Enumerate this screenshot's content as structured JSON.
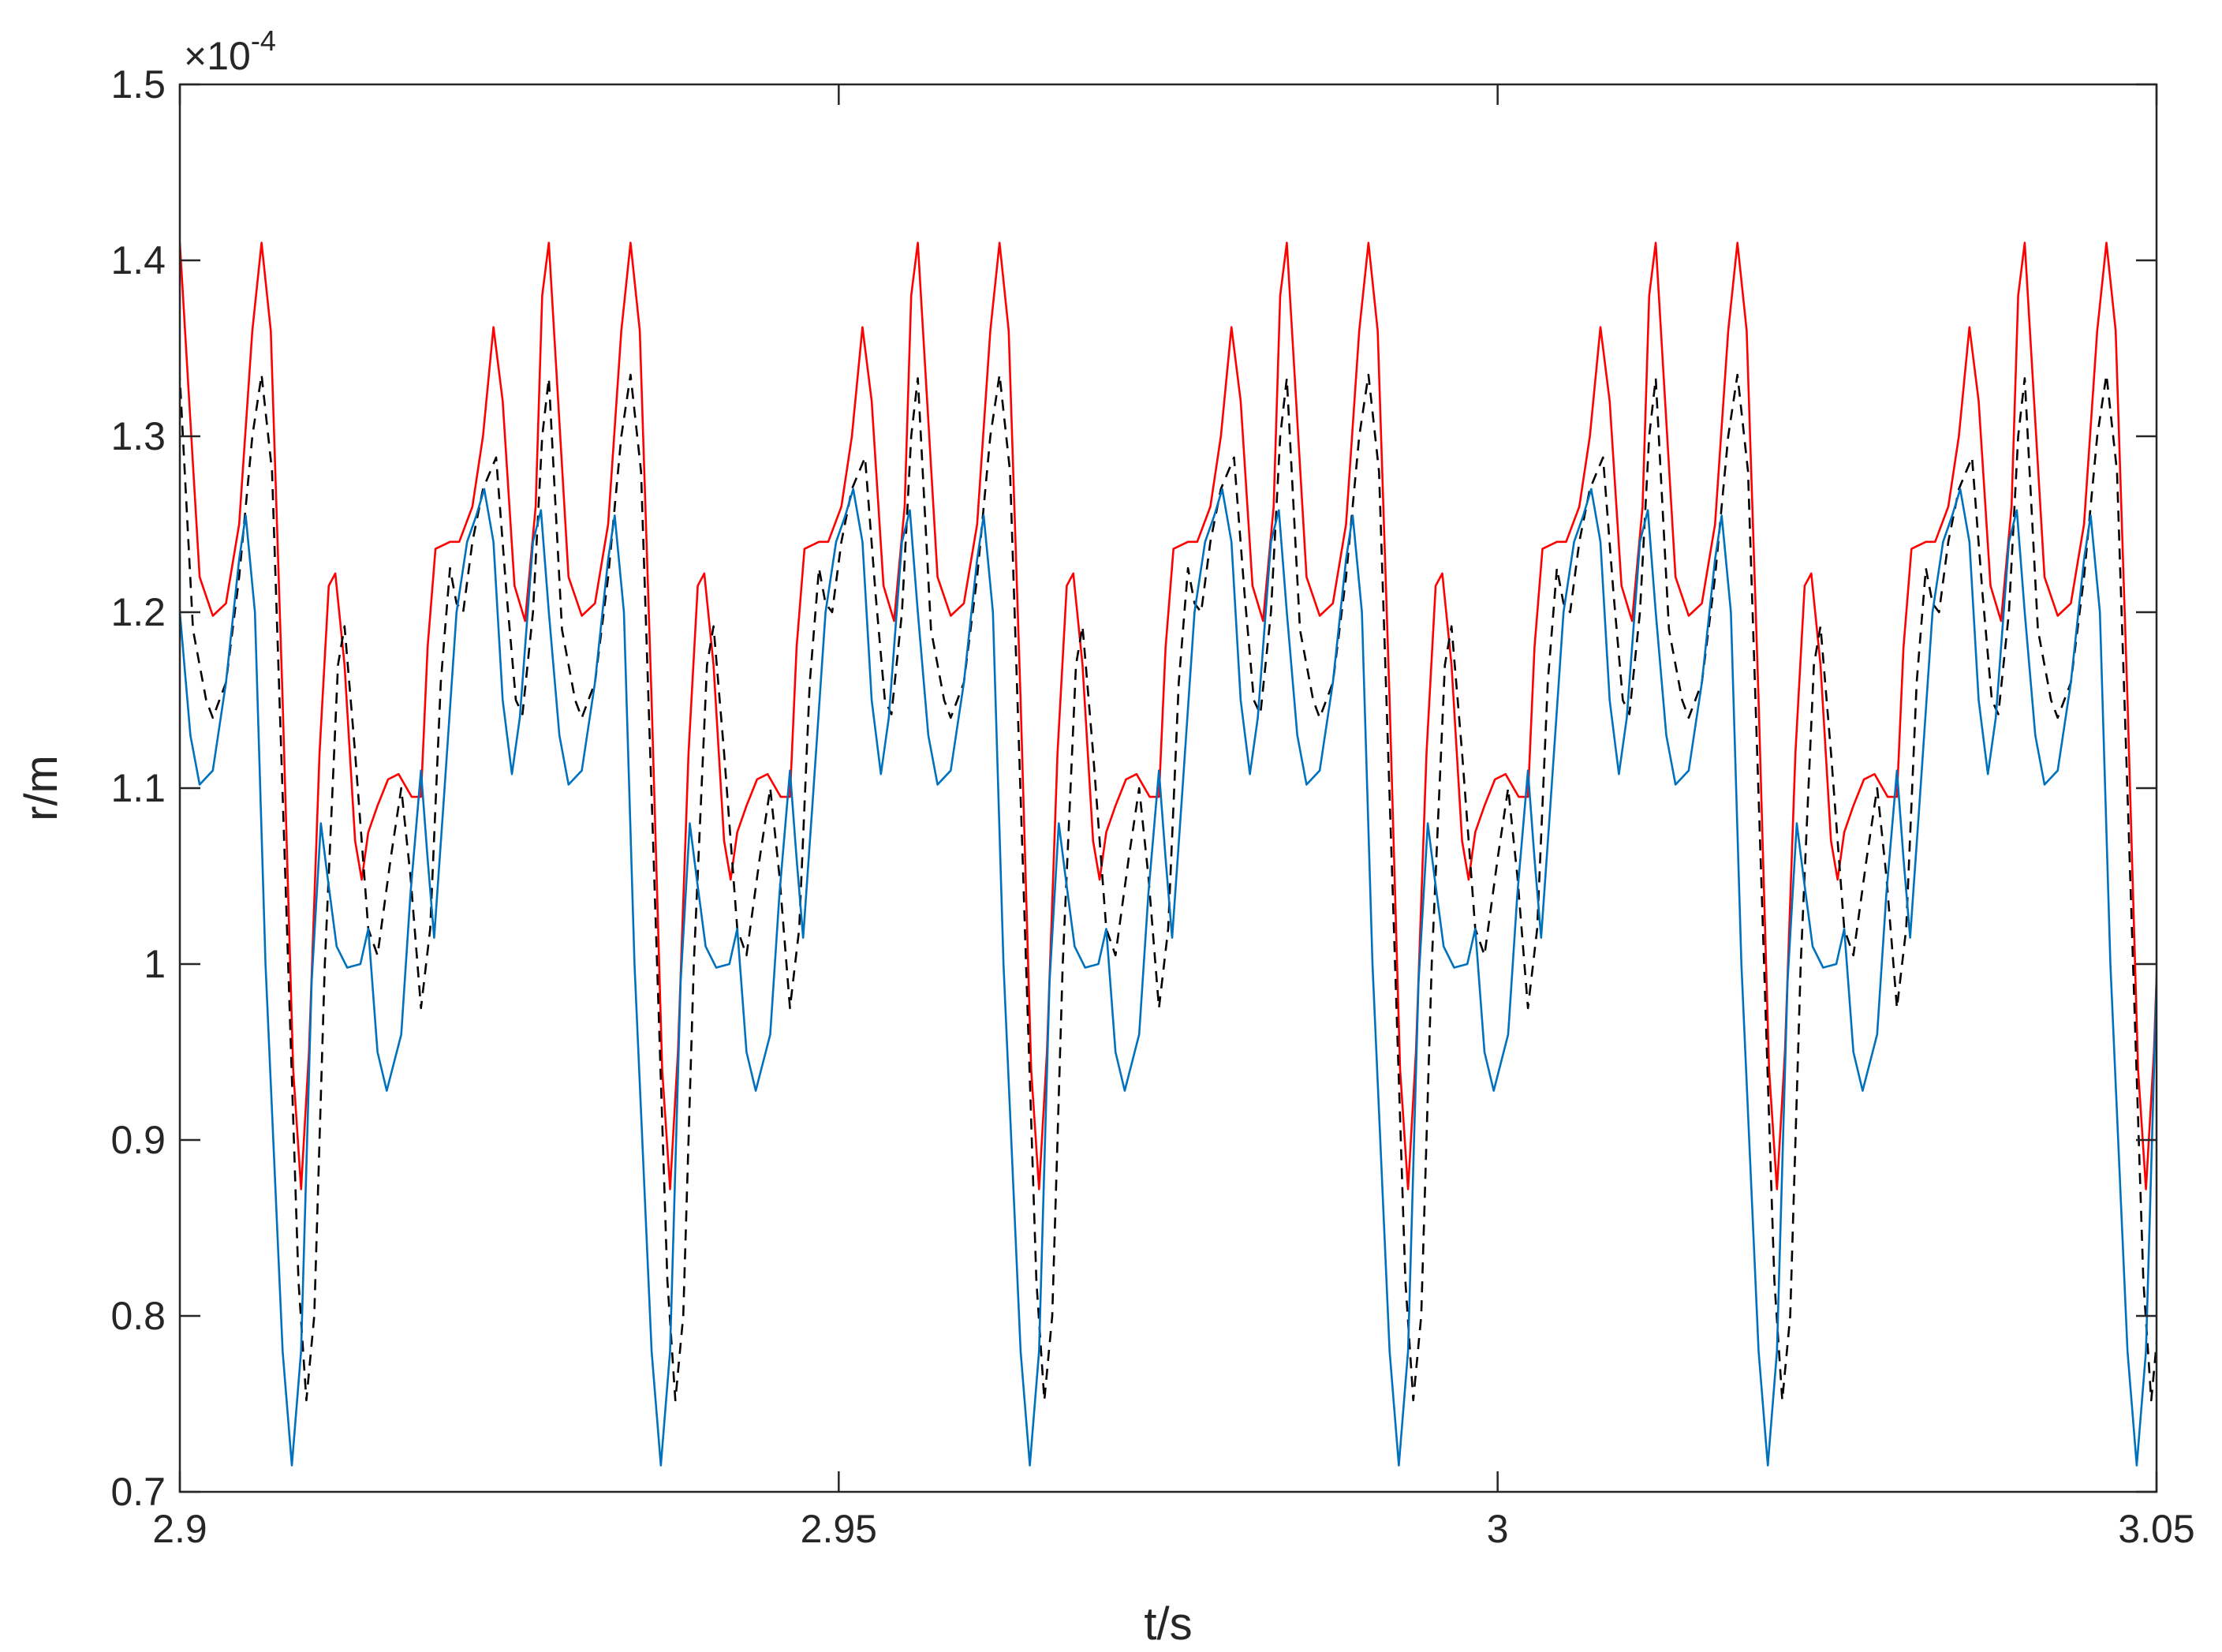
{
  "chart_data": {
    "type": "line",
    "title": "",
    "xlabel": "t/s",
    "ylabel": "r/m",
    "y_exponent_text": "×10",
    "y_exponent_power": "-4",
    "xlim": [
      2.9,
      3.05
    ],
    "ylim": [
      0.7,
      1.5
    ],
    "xticks": [
      2.9,
      2.95,
      3.0,
      3.05
    ],
    "xtick_labels": [
      "2.9",
      "2.95",
      "3",
      "3.05"
    ],
    "yticks": [
      0.7,
      0.8,
      0.9,
      1.0,
      1.1,
      1.2,
      1.3,
      1.4,
      1.5
    ],
    "ytick_labels": [
      "0.7",
      "0.8",
      "0.9",
      "1",
      "1.1",
      "1.2",
      "1.3",
      "1.4",
      "1.5"
    ],
    "grid": false,
    "period": 0.028,
    "series": [
      {
        "color": "#ff0000",
        "dash": "",
        "cycle": [
          [
            0.0,
            1.26
          ],
          [
            0.0015,
            1.22
          ],
          [
            0.0025,
            1.198
          ],
          [
            0.0035,
            1.205
          ],
          [
            0.0045,
            1.25
          ],
          [
            0.0055,
            1.36
          ],
          [
            0.0062,
            1.41
          ],
          [
            0.0069,
            1.36
          ],
          [
            0.0078,
            1.15
          ],
          [
            0.0086,
            0.94
          ],
          [
            0.0092,
            0.872
          ],
          [
            0.0098,
            0.95
          ],
          [
            0.0106,
            1.12
          ],
          [
            0.0113,
            1.215
          ],
          [
            0.0118,
            1.222
          ],
          [
            0.0125,
            1.17
          ],
          [
            0.0133,
            1.07
          ],
          [
            0.0138,
            1.048
          ],
          [
            0.0143,
            1.075
          ],
          [
            0.015,
            1.09
          ],
          [
            0.0158,
            1.105
          ],
          [
            0.0166,
            1.108
          ],
          [
            0.0176,
            1.095
          ],
          [
            0.0183,
            1.095
          ],
          [
            0.0188,
            1.18
          ],
          [
            0.0194,
            1.236
          ],
          [
            0.0205,
            1.24
          ],
          [
            0.0212,
            1.24
          ],
          [
            0.0222,
            1.26
          ],
          [
            0.023,
            1.3
          ],
          [
            0.0238,
            1.362
          ],
          [
            0.0245,
            1.32
          ],
          [
            0.0254,
            1.215
          ],
          [
            0.0262,
            1.195
          ],
          [
            0.027,
            1.26
          ],
          [
            0.0275,
            1.38
          ],
          [
            0.028,
            1.41
          ]
        ]
      },
      {
        "color": "#000000",
        "dash": "14 10",
        "cycle": [
          [
            0.0,
            1.24
          ],
          [
            0.001,
            1.19
          ],
          [
            0.002,
            1.15
          ],
          [
            0.0025,
            1.14
          ],
          [
            0.0035,
            1.16
          ],
          [
            0.0045,
            1.22
          ],
          [
            0.0055,
            1.3
          ],
          [
            0.0062,
            1.335
          ],
          [
            0.007,
            1.28
          ],
          [
            0.008,
            1.05
          ],
          [
            0.009,
            0.82
          ],
          [
            0.0096,
            0.752
          ],
          [
            0.0102,
            0.8
          ],
          [
            0.011,
            1.0
          ],
          [
            0.012,
            1.17
          ],
          [
            0.0125,
            1.192
          ],
          [
            0.0133,
            1.12
          ],
          [
            0.0143,
            1.02
          ],
          [
            0.015,
            1.005
          ],
          [
            0.016,
            1.06
          ],
          [
            0.0168,
            1.1
          ],
          [
            0.0175,
            1.05
          ],
          [
            0.0183,
            0.975
          ],
          [
            0.019,
            1.02
          ],
          [
            0.0198,
            1.16
          ],
          [
            0.0205,
            1.225
          ],
          [
            0.021,
            1.205
          ],
          [
            0.0215,
            1.2
          ],
          [
            0.0222,
            1.24
          ],
          [
            0.023,
            1.27
          ],
          [
            0.024,
            1.288
          ],
          [
            0.0248,
            1.21
          ],
          [
            0.0255,
            1.15
          ],
          [
            0.026,
            1.142
          ],
          [
            0.0268,
            1.2
          ],
          [
            0.0275,
            1.3
          ],
          [
            0.028,
            1.333
          ]
        ]
      },
      {
        "color": "#0072bd",
        "dash": "",
        "cycle": [
          [
            0.0,
            1.2
          ],
          [
            0.0008,
            1.13
          ],
          [
            0.0015,
            1.102
          ],
          [
            0.0025,
            1.11
          ],
          [
            0.0035,
            1.16
          ],
          [
            0.0045,
            1.23
          ],
          [
            0.005,
            1.255
          ],
          [
            0.0057,
            1.2
          ],
          [
            0.0065,
            1.0
          ],
          [
            0.0078,
            0.78
          ],
          [
            0.0085,
            0.715
          ],
          [
            0.0092,
            0.78
          ],
          [
            0.01,
            0.99
          ],
          [
            0.0107,
            1.08
          ],
          [
            0.0112,
            1.05
          ],
          [
            0.0119,
            1.01
          ],
          [
            0.0127,
            0.998
          ],
          [
            0.0137,
            1.0
          ],
          [
            0.0143,
            1.02
          ],
          [
            0.015,
            0.95
          ],
          [
            0.0157,
            0.928
          ],
          [
            0.0168,
            0.96
          ],
          [
            0.0175,
            1.04
          ],
          [
            0.0183,
            1.11
          ],
          [
            0.0188,
            1.06
          ],
          [
            0.0193,
            1.015
          ],
          [
            0.02,
            1.09
          ],
          [
            0.021,
            1.2
          ],
          [
            0.0218,
            1.24
          ],
          [
            0.0225,
            1.255
          ],
          [
            0.0231,
            1.27
          ],
          [
            0.0238,
            1.24
          ],
          [
            0.0245,
            1.15
          ],
          [
            0.0252,
            1.108
          ],
          [
            0.0258,
            1.14
          ],
          [
            0.0268,
            1.24
          ],
          [
            0.0274,
            1.258
          ],
          [
            0.028,
            1.2
          ]
        ]
      }
    ]
  }
}
